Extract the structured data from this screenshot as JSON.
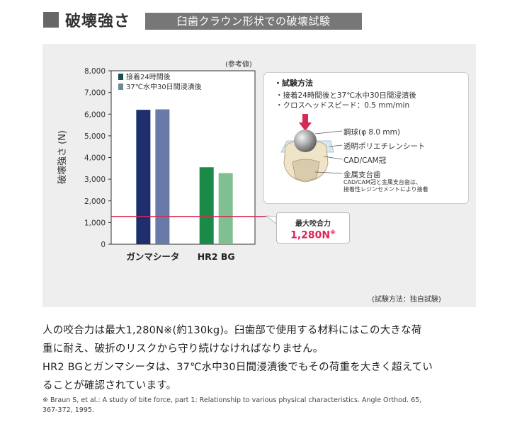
{
  "header": {
    "title": "破壊強さ",
    "tag": "臼歯クラウン形状での破壊試験"
  },
  "chart_data": {
    "type": "bar",
    "note": "(参考値)",
    "ylabel": "破壊強さ (N)",
    "ylim": [
      0,
      8000
    ],
    "yticks": [
      0,
      1000,
      2000,
      3000,
      4000,
      5000,
      6000,
      7000,
      8000
    ],
    "ytick_labels": [
      "0",
      "1,000",
      "2,000",
      "3,000",
      "4,000",
      "5,000",
      "6,000",
      "7,000",
      "8,000"
    ],
    "categories": [
      "ガンマシータ",
      "HR2 BG"
    ],
    "series": [
      {
        "name": "接着24時間後",
        "values": [
          6200,
          3550
        ]
      },
      {
        "name": "37℃水中30日間浸漬後",
        "values": [
          6220,
          3280
        ]
      }
    ],
    "colors": {
      "ガンマシータ": [
        "#1e2e6e",
        "#6a7aa8"
      ],
      "HR2 BG": [
        "#1a8a48",
        "#80bf90"
      ],
      "legend": [
        "#1e4e4e",
        "#6a8a9a"
      ],
      "threshold": "#d42a56"
    },
    "threshold": {
      "value": 1280,
      "label1": "最大咬合力",
      "label2": "1,280N",
      "mark": "※"
    },
    "grid": false,
    "legend_position": "top-left"
  },
  "method": {
    "title": "・試験方法",
    "lines": [
      "・接着24時間後と37℃水中30日間浸漬後",
      "・クロスヘッドスピード：0.5 mm/min"
    ],
    "labels": [
      "鋼球(φ 8.0 mm)",
      "透明ポリエチレンシート",
      "CAD/CAM冠",
      "金属支台歯"
    ],
    "sublabels": [
      "CAD/CAM冠と金属支台歯は、",
      "接着性レジンセメントにより接着"
    ]
  },
  "source_note": "(試験方法：独自試験)",
  "paragraph": [
    "人の咬合力は最大1,280N※(約130kg)。臼歯部で使用する材料にはこの大きな荷",
    "重に耐え、破折のリスクから守り続けなければなりません。",
    "HR2  BGとガンマシータは、37℃水中30日間浸漬後でもその荷重を大きく超えてい",
    "ることが確認されています。"
  ],
  "footnote": [
    "※ Braun S, et al.: A study of bite force, part 1: Relationship to various physical characteristics. Angle Orthod. 65,",
    "367-372, 1995."
  ]
}
